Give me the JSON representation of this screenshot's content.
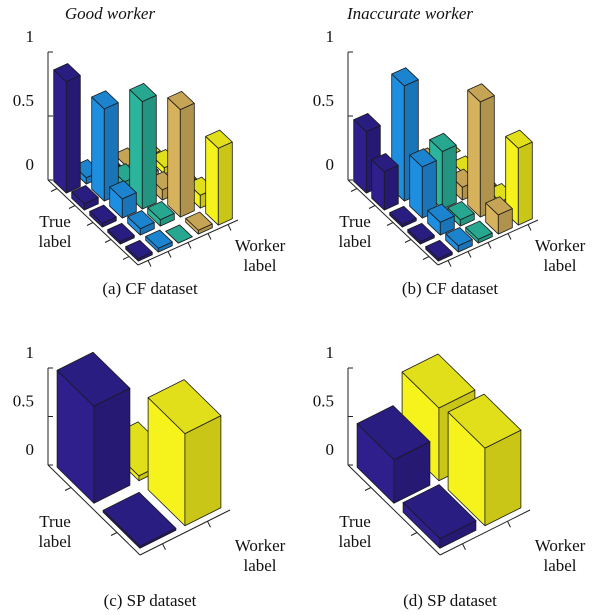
{
  "chart_data": [
    {
      "type": "bar3d",
      "title": "Good worker",
      "caption": "(a) CF dataset",
      "xlabel": "True label",
      "ylabel": "Worker label",
      "zlim": [
        0,
        1
      ],
      "zticks": [
        0,
        0.5,
        1
      ],
      "colors": [
        "#2e1f8c",
        "#1e8ee0",
        "#2bb59c",
        "#d6b25c",
        "#f5f21c"
      ],
      "values": [
        [
          0.87,
          0.05,
          0.03,
          0.0,
          0.0
        ],
        [
          0.05,
          0.72,
          0.08,
          0.05,
          0.05
        ],
        [
          0.03,
          0.15,
          0.84,
          0.08,
          0.05
        ],
        [
          0.02,
          0.05,
          0.05,
          0.84,
          0.1
        ],
        [
          0.02,
          0.03,
          0.0,
          0.03,
          0.6
        ]
      ]
    },
    {
      "type": "bar3d",
      "title": "Inaccurate worker",
      "caption": "(b) CF dataset",
      "xlabel": "True label",
      "ylabel": "Worker label",
      "zlim": [
        0,
        1
      ],
      "zticks": [
        0,
        0.5,
        1
      ],
      "colors": [
        "#2e1f8c",
        "#1e8ee0",
        "#2bb59c",
        "#d6b25c",
        "#f5f21c"
      ],
      "values": [
        [
          0.48,
          0.02,
          0.0,
          0.0,
          0.0
        ],
        [
          0.3,
          0.9,
          0.02,
          0.0,
          0.0
        ],
        [
          0.02,
          0.4,
          0.45,
          0.1,
          0.0
        ],
        [
          0.02,
          0.1,
          0.05,
          0.9,
          0.05
        ],
        [
          0.02,
          0.05,
          0.03,
          0.15,
          0.6
        ]
      ]
    },
    {
      "type": "bar3d",
      "caption": "(c) SP dataset",
      "xlabel": "True label",
      "ylabel": "Worker label",
      "zlim": [
        0,
        1
      ],
      "zticks": [
        0,
        0.5,
        1
      ],
      "colors": [
        "#2e1f8c",
        "#f5f21c"
      ],
      "values": [
        [
          1.0,
          0.05
        ],
        [
          0.02,
          0.95
        ]
      ]
    },
    {
      "type": "bar3d",
      "caption": "(d) SP dataset",
      "xlabel": "True label",
      "ylabel": "Worker label",
      "zlim": [
        0,
        1
      ],
      "zticks": [
        0,
        0.5,
        1
      ],
      "colors": [
        "#2e1f8c",
        "#f5f21c"
      ],
      "values": [
        [
          0.45,
          0.75
        ],
        [
          0.1,
          0.8
        ]
      ]
    }
  ]
}
